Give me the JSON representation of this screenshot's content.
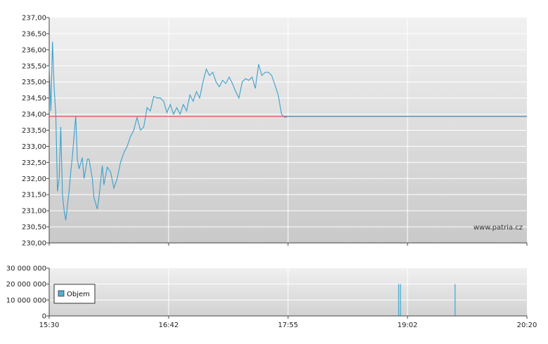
{
  "watermark": "www.patria.cz",
  "colors": {
    "price_line": "#3aa0cc",
    "reference_line": "#e05555",
    "volume_bar": "#4fb0d8",
    "grid": "#ffffff",
    "axis": "#444444"
  },
  "chart_data": [
    {
      "type": "line",
      "title": "",
      "xlabel": "",
      "ylabel": "",
      "ylim": [
        230.0,
        237.0
      ],
      "y_ticks": [
        "237,00",
        "236,50",
        "236,00",
        "235,50",
        "235,00",
        "234,50",
        "234,00",
        "233,50",
        "233,00",
        "232,50",
        "232,00",
        "231,50",
        "231,00",
        "230,50",
        "230,00"
      ],
      "x_ticks": [
        "15:30",
        "16:42",
        "17:55",
        "19:02",
        "20:20"
      ],
      "grid": true,
      "reference_line": 233.93,
      "series": [
        {
          "x": [
            "15:30",
            "15:31",
            "15:32",
            "15:33",
            "15:34",
            "15:35",
            "15:36",
            "15:37",
            "15:38",
            "15:39",
            "15:40",
            "15:42",
            "15:43",
            "15:44",
            "15:46",
            "15:47",
            "15:48",
            "15:50",
            "15:51",
            "15:53",
            "15:54",
            "15:56",
            "15:57",
            "15:59",
            "16:00",
            "16:02",
            "16:03",
            "16:05",
            "16:07",
            "16:09",
            "16:11",
            "16:13",
            "16:15",
            "16:17",
            "16:19",
            "16:21",
            "16:23",
            "16:25",
            "16:27",
            "16:29",
            "16:31",
            "16:33",
            "16:35",
            "16:37",
            "16:39",
            "16:41",
            "16:43",
            "16:45",
            "16:47",
            "16:49",
            "16:51",
            "16:53",
            "16:55",
            "16:57",
            "16:59",
            "17:01",
            "17:03",
            "17:05",
            "17:07",
            "17:09",
            "17:11",
            "17:13",
            "17:15",
            "17:17",
            "17:19",
            "17:21",
            "17:23",
            "17:25",
            "17:27",
            "17:29",
            "17:31",
            "17:33",
            "17:35",
            "17:37",
            "17:39",
            "17:41",
            "17:43",
            "17:45",
            "17:47",
            "17:49",
            "17:51",
            "17:53",
            "17:55",
            "17:57",
            "17:59",
            "18:01",
            "18:03",
            "18:05",
            "18:07",
            "18:09",
            "18:11",
            "18:13",
            "18:15",
            "18:17",
            "18:19",
            "18:21",
            "18:23",
            "18:25",
            "18:27",
            "18:29",
            "18:31",
            "18:33",
            "18:35",
            "18:37",
            "18:39",
            "18:41",
            "18:43",
            "18:45",
            "18:47",
            "18:49",
            "18:51",
            "18:53",
            "18:55",
            "18:57",
            "18:59",
            "19:02",
            "19:30",
            "20:00",
            "20:20"
          ],
          "values": [
            235.5,
            234.1,
            236.25,
            234.8,
            234.0,
            231.6,
            232.0,
            233.6,
            231.5,
            231.0,
            230.7,
            231.6,
            232.2,
            232.7,
            233.95,
            232.6,
            232.3,
            232.65,
            232.0,
            232.6,
            232.6,
            232.0,
            231.4,
            231.05,
            231.4,
            232.4,
            231.8,
            232.35,
            232.2,
            231.7,
            232.0,
            232.5,
            232.8,
            233.0,
            233.3,
            233.5,
            233.9,
            233.5,
            233.6,
            234.2,
            234.1,
            234.55,
            234.5,
            234.5,
            234.4,
            234.05,
            234.3,
            234.0,
            234.2,
            234.0,
            234.3,
            234.1,
            234.6,
            234.4,
            234.7,
            234.5,
            235.0,
            235.4,
            235.2,
            235.3,
            235.0,
            234.85,
            235.05,
            234.95,
            235.15,
            234.95,
            234.7,
            234.5,
            235.0,
            235.1,
            235.05,
            235.15,
            234.8,
            235.55,
            235.2,
            235.3,
            235.3,
            235.2,
            234.9,
            234.6,
            234.0,
            233.9,
            233.93,
            233.93,
            233.93,
            233.93,
            233.93,
            233.93,
            233.93,
            233.93,
            233.93,
            233.93,
            233.93,
            233.93,
            233.93,
            233.93,
            233.93,
            233.93,
            233.93,
            233.93,
            233.93,
            233.93,
            233.93,
            233.93,
            233.93,
            233.93,
            233.93,
            233.93,
            233.93,
            233.93,
            233.93,
            233.93,
            233.93,
            233.93,
            233.93,
            233.93,
            233.93,
            233.93,
            233.93
          ]
        }
      ]
    },
    {
      "type": "bar",
      "title": "",
      "ylim": [
        0,
        30000000
      ],
      "y_ticks": [
        "30 000 000",
        "20 000 000",
        "10 000 000",
        "0"
      ],
      "x_ticks": [
        "15:30",
        "16:42",
        "17:55",
        "19:02",
        "20:20"
      ],
      "legend": "Objem",
      "legend_position": "left",
      "series": [
        {
          "name": "Objem",
          "x": [
            "18:57",
            "18:58",
            "19:33"
          ],
          "values": [
            20000000,
            20000000,
            20000000
          ]
        }
      ]
    }
  ]
}
